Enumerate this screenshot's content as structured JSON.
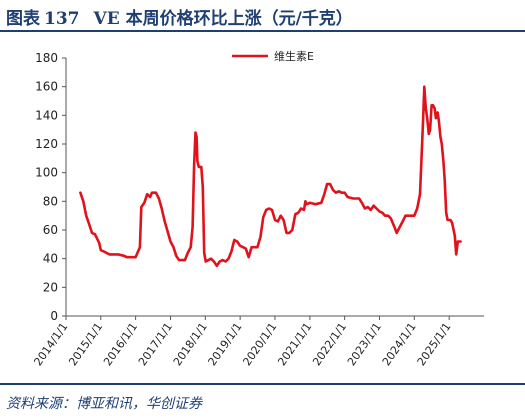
{
  "header": {
    "prefix": "图表",
    "number": "137",
    "title": "VE 本周价格环比上涨（元/千克）"
  },
  "footer": {
    "source": "资料来源：博亚和讯，华创证券"
  },
  "colors": {
    "accent": "#1f3f73",
    "series": "#e0121c",
    "axis": "#555555"
  },
  "chart_data": {
    "type": "line",
    "title": "",
    "xlabel": "",
    "ylabel": "",
    "ylim": [
      0,
      180
    ],
    "yticks": [
      0,
      20,
      40,
      60,
      80,
      100,
      120,
      140,
      160,
      180
    ],
    "xticks": [
      "2014/1/1",
      "2015/1/1",
      "2016/1/1",
      "2017/1/1",
      "2018/1/1",
      "2019/1/1",
      "2020/1/1",
      "2021/1/1",
      "2022/1/1",
      "2023/1/1",
      "2024/1/1",
      "2025/1/1"
    ],
    "xlim": [
      "2014-01-01",
      "2026-01-01"
    ],
    "legend": "top-center",
    "grid": false,
    "series": [
      {
        "name": "维生素E",
        "points": [
          [
            "2014-06-01",
            86
          ],
          [
            "2014-07-01",
            80
          ],
          [
            "2014-08-01",
            70
          ],
          [
            "2014-09-01",
            64
          ],
          [
            "2014-10-01",
            58
          ],
          [
            "2014-11-01",
            57
          ],
          [
            "2014-12-15",
            51
          ],
          [
            "2015-01-01",
            46
          ],
          [
            "2015-02-01",
            45
          ],
          [
            "2015-04-01",
            43
          ],
          [
            "2015-07-01",
            43
          ],
          [
            "2015-09-01",
            42
          ],
          [
            "2015-10-01",
            41
          ],
          [
            "2016-01-01",
            41
          ],
          [
            "2016-02-15",
            48
          ],
          [
            "2016-03-01",
            76
          ],
          [
            "2016-04-01",
            79
          ],
          [
            "2016-05-01",
            85
          ],
          [
            "2016-06-01",
            83
          ],
          [
            "2016-06-20",
            86
          ],
          [
            "2016-08-01",
            86
          ],
          [
            "2016-09-01",
            82
          ],
          [
            "2016-10-01",
            75
          ],
          [
            "2016-11-01",
            66
          ],
          [
            "2016-12-01",
            59
          ],
          [
            "2017-01-01",
            52
          ],
          [
            "2017-02-01",
            48
          ],
          [
            "2017-03-01",
            42
          ],
          [
            "2017-04-01",
            39
          ],
          [
            "2017-06-01",
            39
          ],
          [
            "2017-07-01",
            44
          ],
          [
            "2017-08-01",
            48
          ],
          [
            "2017-08-20",
            62
          ],
          [
            "2017-09-05",
            105
          ],
          [
            "2017-09-20",
            128
          ],
          [
            "2017-10-01",
            125
          ],
          [
            "2017-10-10",
            108
          ],
          [
            "2017-10-25",
            104
          ],
          [
            "2017-11-20",
            104
          ],
          [
            "2017-12-05",
            90
          ],
          [
            "2017-12-20",
            44
          ],
          [
            "2018-01-05",
            38
          ],
          [
            "2018-03-01",
            40
          ],
          [
            "2018-04-01",
            38
          ],
          [
            "2018-05-01",
            35
          ],
          [
            "2018-06-01",
            38
          ],
          [
            "2018-07-01",
            39
          ],
          [
            "2018-08-01",
            38
          ],
          [
            "2018-09-01",
            40
          ],
          [
            "2018-10-01",
            45
          ],
          [
            "2018-11-01",
            53
          ],
          [
            "2018-12-01",
            52
          ],
          [
            "2019-01-01",
            49
          ],
          [
            "2019-02-01",
            48
          ],
          [
            "2019-03-01",
            47
          ],
          [
            "2019-04-01",
            41
          ],
          [
            "2019-05-01",
            48
          ],
          [
            "2019-07-01",
            48
          ],
          [
            "2019-08-01",
            55
          ],
          [
            "2019-09-01",
            69
          ],
          [
            "2019-10-01",
            74
          ],
          [
            "2019-11-01",
            75
          ],
          [
            "2019-12-01",
            74
          ],
          [
            "2020-01-01",
            67
          ],
          [
            "2020-02-01",
            66
          ],
          [
            "2020-03-01",
            70
          ],
          [
            "2020-04-01",
            67
          ],
          [
            "2020-05-01",
            58
          ],
          [
            "2020-06-01",
            58
          ],
          [
            "2020-07-01",
            60
          ],
          [
            "2020-08-01",
            71
          ],
          [
            "2020-09-01",
            72
          ],
          [
            "2020-10-01",
            75
          ],
          [
            "2020-11-01",
            74
          ],
          [
            "2020-11-15",
            80
          ],
          [
            "2020-12-01",
            78
          ],
          [
            "2021-01-01",
            79
          ],
          [
            "2021-03-01",
            78
          ],
          [
            "2021-05-01",
            79
          ],
          [
            "2021-06-01",
            85
          ],
          [
            "2021-07-01",
            92
          ],
          [
            "2021-08-01",
            92
          ],
          [
            "2021-09-01",
            88
          ],
          [
            "2021-10-01",
            86
          ],
          [
            "2021-11-01",
            87
          ],
          [
            "2021-12-01",
            86
          ],
          [
            "2022-01-01",
            86
          ],
          [
            "2022-02-01",
            83
          ],
          [
            "2022-04-01",
            82
          ],
          [
            "2022-06-01",
            82
          ],
          [
            "2022-07-01",
            79
          ],
          [
            "2022-08-01",
            75
          ],
          [
            "2022-09-01",
            76
          ],
          [
            "2022-10-01",
            74
          ],
          [
            "2022-11-01",
            77
          ],
          [
            "2022-12-01",
            75
          ],
          [
            "2023-01-01",
            73
          ],
          [
            "2023-02-01",
            72
          ],
          [
            "2023-03-01",
            70
          ],
          [
            "2023-04-01",
            70
          ],
          [
            "2023-05-01",
            68
          ],
          [
            "2023-06-01",
            63
          ],
          [
            "2023-07-01",
            58
          ],
          [
            "2023-08-01",
            62
          ],
          [
            "2023-09-01",
            66
          ],
          [
            "2023-10-01",
            70
          ],
          [
            "2023-11-01",
            70
          ],
          [
            "2023-12-01",
            70
          ],
          [
            "2024-01-01",
            70
          ],
          [
            "2024-02-01",
            75
          ],
          [
            "2024-03-01",
            85
          ],
          [
            "2024-04-01",
            135
          ],
          [
            "2024-04-15",
            160
          ],
          [
            "2024-05-01",
            145
          ],
          [
            "2024-05-15",
            138
          ],
          [
            "2024-06-01",
            127
          ],
          [
            "2024-06-15",
            130
          ],
          [
            "2024-07-01",
            147
          ],
          [
            "2024-07-15",
            147
          ],
          [
            "2024-08-01",
            145
          ],
          [
            "2024-08-15",
            138
          ],
          [
            "2024-09-01",
            142
          ],
          [
            "2024-09-15",
            136
          ],
          [
            "2024-10-01",
            125
          ],
          [
            "2024-10-15",
            120
          ],
          [
            "2024-11-01",
            108
          ],
          [
            "2024-11-15",
            95
          ],
          [
            "2024-12-01",
            72
          ],
          [
            "2024-12-15",
            67
          ],
          [
            "2025-01-15",
            67
          ],
          [
            "2025-02-01",
            65
          ],
          [
            "2025-03-01",
            56
          ],
          [
            "2025-03-15",
            43
          ],
          [
            "2025-04-01",
            52
          ],
          [
            "2025-05-01",
            52
          ]
        ]
      }
    ]
  }
}
